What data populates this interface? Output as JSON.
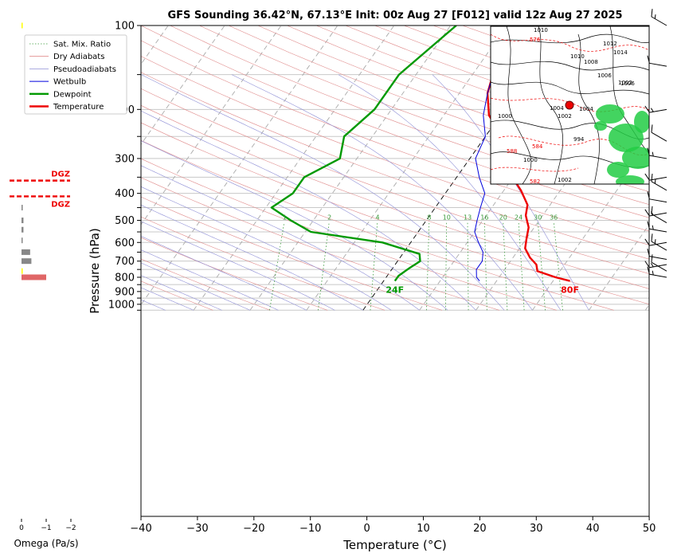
{
  "chart_data": {
    "type": "line",
    "title": "GFS Sounding 36.42°N, 67.13°E Init: 00z Aug 27 [F012] valid 12z Aug 27 2025",
    "xlabel": "Temperature (°C)",
    "ylabel": "Pressure (hPa)",
    "xlim": [
      -40,
      50
    ],
    "ylim": [
      1050,
      100
    ],
    "y_scale": "log",
    "grid": true,
    "legend_position": "top-left",
    "x_ticks": [
      "−40",
      "−30",
      "−20",
      "−10",
      "0",
      "10",
      "20",
      "30",
      "40",
      "50"
    ],
    "y_ticks": [
      "100",
      "200",
      "300",
      "400",
      "500",
      "600",
      "700",
      "800",
      "900",
      "1000"
    ],
    "legend": [
      "Sat. Mix. Ratio",
      "Dry Adiabats",
      "Pseudoadiabats",
      "Wetbulb",
      "Dewpoint",
      "Temperature"
    ],
    "series": [
      {
        "name": "Temperature",
        "color": "#ee0000",
        "points": [
          [
            -9.5,
            100
          ],
          [
            -7,
            140
          ],
          [
            -5,
            175
          ],
          [
            -2,
            210
          ],
          [
            3,
            250
          ],
          [
            4,
            290
          ],
          [
            9,
            340
          ],
          [
            13,
            390
          ],
          [
            16,
            440
          ],
          [
            17,
            480
          ],
          [
            19,
            530
          ],
          [
            20,
            580
          ],
          [
            21,
            630
          ],
          [
            23,
            680
          ],
          [
            25,
            720
          ],
          [
            26,
            760
          ],
          [
            30,
            800
          ],
          [
            33,
            825
          ]
        ]
      },
      {
        "name": "Dewpoint",
        "color": "#009900",
        "points": [
          [
            -19,
            100
          ],
          [
            -23,
            150
          ],
          [
            -23,
            200
          ],
          [
            -25,
            250
          ],
          [
            -23,
            300
          ],
          [
            -27,
            350
          ],
          [
            -27,
            400
          ],
          [
            -29,
            450
          ],
          [
            -24,
            500
          ],
          [
            -19,
            550
          ],
          [
            -5,
            600
          ],
          [
            3,
            660
          ],
          [
            4,
            700
          ],
          [
            3,
            740
          ],
          [
            2,
            790
          ],
          [
            2,
            825
          ]
        ]
      },
      {
        "name": "Wetbulb",
        "color": "#0000dd",
        "points": [
          [
            -9.5,
            100
          ],
          [
            -7,
            140
          ],
          [
            -5,
            175
          ],
          [
            -3,
            210
          ],
          [
            0,
            250
          ],
          [
            1,
            300
          ],
          [
            4,
            350
          ],
          [
            7,
            400
          ],
          [
            8,
            450
          ],
          [
            9,
            500
          ],
          [
            10,
            550
          ],
          [
            12,
            600
          ],
          [
            14,
            650
          ],
          [
            15,
            700
          ],
          [
            15,
            750
          ],
          [
            16,
            800
          ],
          [
            17,
            825
          ]
        ]
      }
    ],
    "surface_labels": {
      "temperature": "80F",
      "dewpoint": "24F"
    },
    "mixing_ratio_labels": [
      "1",
      "2",
      "4",
      "8",
      "10",
      "13",
      "16",
      "20",
      "24",
      "30",
      "36"
    ],
    "mixing_ratio_values": [
      1,
      2,
      4,
      8,
      10,
      13,
      16,
      20,
      24,
      30,
      36
    ],
    "omega": {
      "xlabel": "Omega (Pa/s)",
      "ticks": [
        "0",
        "−1",
        "−2"
      ],
      "xlim": [
        0,
        -2
      ],
      "dgz_label": "DGZ",
      "dgz_levels_hpa": [
        360,
        410
      ],
      "bars": [
        {
          "p": 100,
          "value": -0.02,
          "color": "#ffff00"
        },
        {
          "p": 450,
          "value": -0.05,
          "color": "#888888"
        },
        {
          "p": 500,
          "value": -0.08,
          "color": "#888888"
        },
        {
          "p": 540,
          "value": -0.08,
          "color": "#888888"
        },
        {
          "p": 590,
          "value": -0.04,
          "color": "#888888"
        },
        {
          "p": 650,
          "value": -0.35,
          "color": "#888888"
        },
        {
          "p": 700,
          "value": -0.4,
          "color": "#888888"
        },
        {
          "p": 760,
          "value": -0.03,
          "color": "#ffff00"
        },
        {
          "p": 800,
          "value": -1.0,
          "color": "#e06666"
        }
      ]
    }
  },
  "inset_map": {
    "isobar_labels": [
      "1010",
      "576",
      "1012",
      "1014",
      "1010",
      "1008",
      "1006",
      "1006",
      "1004",
      "1000",
      "1002",
      "1004",
      "1002",
      "994",
      "588",
      "584",
      "1000",
      "1002",
      "582"
    ]
  }
}
